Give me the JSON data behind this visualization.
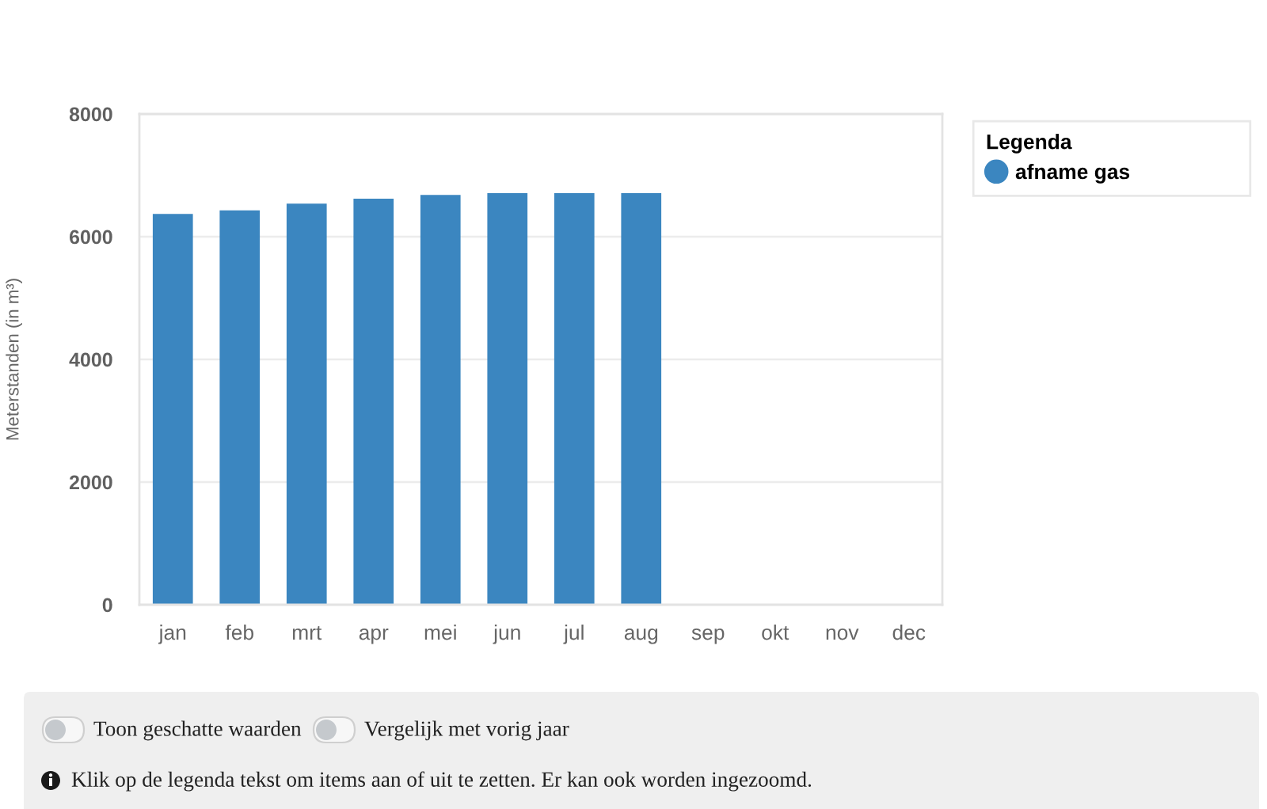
{
  "chart_data": {
    "type": "bar",
    "categories": [
      "jan",
      "feb",
      "mrt",
      "apr",
      "mei",
      "jun",
      "jul",
      "aug",
      "sep",
      "okt",
      "nov",
      "dec"
    ],
    "series": [
      {
        "name": "afname gas",
        "color": "#3b86c0",
        "values": [
          6370,
          6430,
          6540,
          6620,
          6680,
          6710,
          6710,
          6710,
          null,
          null,
          null,
          null
        ]
      }
    ],
    "ylabel": "Meterstanden (in m³)",
    "ylim": [
      0,
      8000
    ],
    "yticks": [
      0,
      2000,
      4000,
      6000,
      8000
    ],
    "grid": "y",
    "legend": "right",
    "legend_title": "Legenda",
    "annotations": [
      "Toon geschatte waarden",
      "Vergelijk met vorig jaar",
      "Klik op de legenda tekst om items aan of uit te zetten. Er kan ook worden ingezoomd."
    ]
  }
}
